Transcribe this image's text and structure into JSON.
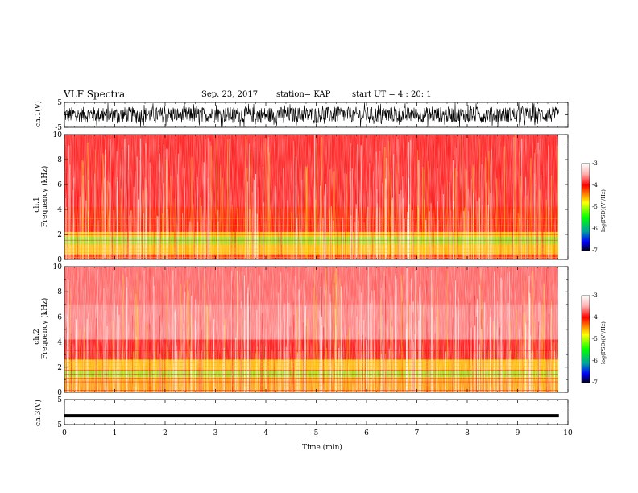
{
  "header": {
    "title": "VLF Spectra",
    "date": "Sep. 23, 2017",
    "station": "station= KAP",
    "start": "start UT = 4 : 20: 1"
  },
  "chart_data": [
    {
      "type": "line",
      "panel": "ch1-waveform",
      "ylabel": "ch.1(V)",
      "ylim": [
        -5,
        5
      ],
      "y_ticks": [
        "5",
        "-5"
      ],
      "xlim": [
        0,
        10
      ],
      "description_of_values": "dense noise waveform spanning roughly -5 to 5 V over 0–9.8 min"
    },
    {
      "type": "heatmap",
      "panel": "ch1-spectrogram",
      "ylabel": "ch.1 Frequency (kHz)",
      "ylim": [
        0,
        10
      ],
      "y_ticks": [
        "0",
        "2",
        "4",
        "6",
        "8",
        "10"
      ],
      "xlim": [
        0,
        10
      ],
      "colorbar": {
        "label": "log(PSD)(V²/Hz)",
        "range": [
          -7,
          -3
        ],
        "ticks": [
          "-3",
          "-4",
          "-5",
          "-6",
          "-7"
        ]
      }
    },
    {
      "type": "heatmap",
      "panel": "ch2-spectrogram",
      "ylabel": "ch.2 Frequency (kHz)",
      "ylim": [
        0,
        10
      ],
      "y_ticks": [
        "0",
        "2",
        "4",
        "6",
        "8",
        "10"
      ],
      "xlim": [
        0,
        10
      ],
      "colorbar": {
        "label": "log(PSD)(V²/Hz)",
        "range": [
          -7,
          -3
        ],
        "ticks": [
          "-3",
          "-4",
          "-5",
          "-6",
          "-7"
        ]
      }
    },
    {
      "type": "line",
      "panel": "ch3-waveform",
      "ylabel": "ch.3(V)",
      "ylim": [
        -5,
        5
      ],
      "y_ticks": [
        "5",
        "-5"
      ],
      "xlim": [
        0,
        10
      ],
      "x_ticks": [
        "0",
        "1",
        "2",
        "3",
        "4",
        "5",
        "6",
        "7",
        "8",
        "9",
        "10"
      ],
      "xlabel": "Time (min)",
      "values_constant": -1.5
    }
  ],
  "axis_labels": {
    "ch1_wave": "ch.1(V)",
    "ch1_freq_line1": "ch.1",
    "ch1_freq_line2": "Frequency (kHz)",
    "ch2_freq_line1": "ch.2",
    "ch2_freq_line2": "Frequency (kHz)",
    "ch3_wave": "ch.3(V)",
    "time": "Time (min)",
    "colorbar": "log(PSD)(V²/Hz)"
  },
  "colors": {
    "red": "#ff2020",
    "yellow": "#ffe000",
    "green": "#20ff20",
    "blue": "#0030ff",
    "black": "#000000"
  }
}
